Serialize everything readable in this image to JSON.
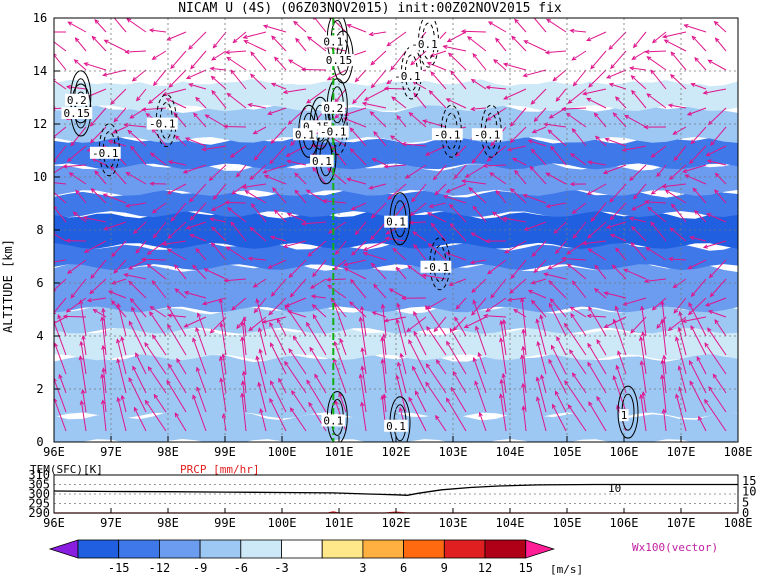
{
  "title": "NICAM U (4S) (06Z03NOV2015) init:00Z02NOV2015 fix",
  "chart_data": {
    "type": "heatmap",
    "main_panel": {
      "ylabel": "ALTITUDE [km]",
      "xlim": [
        96,
        108
      ],
      "ylim": [
        0,
        16
      ],
      "x_ticks": [
        "96E",
        "97E",
        "98E",
        "99E",
        "100E",
        "101E",
        "102E",
        "103E",
        "104E",
        "105E",
        "106E",
        "107E",
        "108E"
      ],
      "y_ticks": [
        "0",
        "2",
        "4",
        "6",
        "8",
        "10",
        "12",
        "14",
        "16"
      ],
      "grid": true,
      "marker_line_lon": 100.9,
      "shaded_bands": [
        {
          "z0": 0.0,
          "z1": 1.0,
          "u": -5
        },
        {
          "z0": 1.0,
          "z1": 3.2,
          "u": -4
        },
        {
          "z0": 3.2,
          "z1": 4.2,
          "u": -3
        },
        {
          "z0": 4.2,
          "z1": 5.0,
          "u": -6
        },
        {
          "z0": 5.0,
          "z1": 6.6,
          "u": -8
        },
        {
          "z0": 6.6,
          "z1": 7.4,
          "u": -10
        },
        {
          "z0": 7.4,
          "z1": 8.6,
          "u": -13
        },
        {
          "z0": 8.6,
          "z1": 9.4,
          "u": -10
        },
        {
          "z0": 9.4,
          "z1": 10.4,
          "u": -8
        },
        {
          "z0": 10.4,
          "z1": 11.4,
          "u": -10
        },
        {
          "z0": 11.4,
          "z1": 12.6,
          "u": -6
        },
        {
          "z0": 12.6,
          "z1": 13.6,
          "u": -3
        },
        {
          "z0": 13.6,
          "z1": 15.4,
          "u": 0
        },
        {
          "z0": 15.4,
          "z1": 16.0,
          "u": 4
        }
      ],
      "contour_labels": [
        {
          "text": "-0.1",
          "lon": 102.5,
          "z": 14.9
        },
        {
          "text": "0.1",
          "lon": 100.9,
          "z": 15.0
        },
        {
          "text": "0.15",
          "lon": 101.0,
          "z": 14.3
        },
        {
          "text": "-0.1",
          "lon": 102.2,
          "z": 13.7
        },
        {
          "text": "0.2",
          "lon": 100.9,
          "z": 12.5
        },
        {
          "text": "0.2",
          "lon": 96.4,
          "z": 12.8
        },
        {
          "text": "0.15",
          "lon": 96.4,
          "z": 12.3
        },
        {
          "text": "-0.1",
          "lon": 97.9,
          "z": 11.9
        },
        {
          "text": "0.15",
          "lon": 100.6,
          "z": 11.8
        },
        {
          "text": "0.1",
          "lon": 100.4,
          "z": 11.5
        },
        {
          "text": "-0.1",
          "lon": 100.9,
          "z": 11.6
        },
        {
          "text": "-0.1",
          "lon": 102.9,
          "z": 11.5
        },
        {
          "text": "-0.1",
          "lon": 103.6,
          "z": 11.5
        },
        {
          "text": "-0.1",
          "lon": 96.9,
          "z": 10.8
        },
        {
          "text": "0.1",
          "lon": 100.7,
          "z": 10.5
        },
        {
          "text": "0.1",
          "lon": 102.0,
          "z": 8.2
        },
        {
          "text": "-0.1",
          "lon": 102.7,
          "z": 6.5
        },
        {
          "text": "0.1",
          "lon": 100.9,
          "z": 0.7
        },
        {
          "text": "0.1",
          "lon": 102.0,
          "z": 0.5
        },
        {
          "text": "1",
          "lon": 106.0,
          "z": 0.9
        }
      ],
      "wind_vector_legend": "Wx100(vector)"
    },
    "surface_panel": {
      "series": [
        {
          "name": "TEM(SFC)[K]",
          "x": [
            96,
            97,
            98,
            99,
            100,
            100.9,
            101.5,
            102,
            102.2,
            102.4,
            102.8,
            103.3,
            103.8,
            104.5,
            105.5,
            106,
            107,
            108
          ],
          "values": [
            301.6,
            301.3,
            301.2,
            301.0,
            300.8,
            300.6,
            300.0,
            299.6,
            299.3,
            300.4,
            302.2,
            303.4,
            304.2,
            304.8,
            305.0,
            305.0,
            305.0,
            305.0
          ]
        },
        {
          "name": "PRCP [mm/hr]",
          "x": [
            96,
            100.8,
            100.9,
            101,
            101.8,
            102,
            102.2,
            108
          ],
          "values": [
            0,
            0,
            0.5,
            0,
            0,
            0.4,
            0,
            0
          ]
        }
      ],
      "left_ticks": [
        "310",
        "305",
        "300",
        "295",
        "290"
      ],
      "right_ticks": [
        "15",
        "10",
        "5",
        "0"
      ],
      "contour_label": "10",
      "x_ticks": [
        "96E",
        "97E",
        "98E",
        "99E",
        "100E",
        "101E",
        "102E",
        "103E",
        "104E",
        "105E",
        "106E",
        "107E",
        "108E"
      ]
    },
    "colorbar": {
      "ticks": [
        "-15",
        "-12",
        "-9",
        "-6",
        "-3",
        "3",
        "6",
        "9",
        "12",
        "15"
      ],
      "colors": [
        "#8a1ee0",
        "#2060e0",
        "#3f78e8",
        "#6c9cf0",
        "#9ec8f4",
        "#cde8f6",
        "#ffffff",
        "#ffe88a",
        "#ffb040",
        "#ff6a10",
        "#e02020",
        "#b00018",
        "#ff1e96"
      ],
      "unit": "[m/s]"
    }
  }
}
